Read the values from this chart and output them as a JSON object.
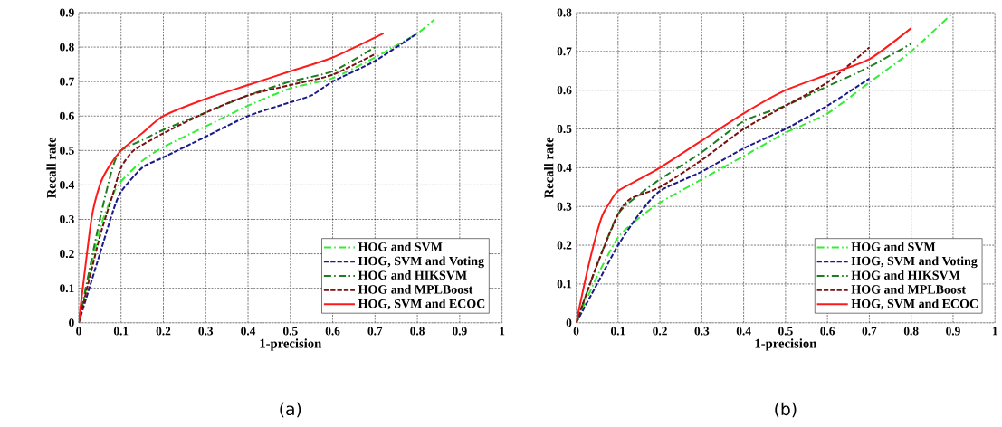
{
  "chart_data": [
    {
      "type": "line",
      "xlabel": "1-precision",
      "ylabel": "Recall rate",
      "annotations": [
        "(a)"
      ],
      "xlim": [
        0,
        1
      ],
      "ylim": [
        0,
        0.9
      ],
      "xticks": [
        0,
        0.1,
        0.2,
        0.3,
        0.4,
        0.5,
        0.6,
        0.7,
        0.8,
        0.9,
        1
      ],
      "yticks": [
        0,
        0.1,
        0.2,
        0.3,
        0.4,
        0.5,
        0.6,
        0.7,
        0.8,
        0.9
      ],
      "grid": true,
      "legend": "bottom right",
      "marker": "none",
      "series": [
        {
          "name": "HOG and SVM",
          "color": "#33ee33",
          "line_style": "dashdot",
          "x": [
            0,
            0.05,
            0.08,
            0.1,
            0.15,
            0.2,
            0.3,
            0.4,
            0.5,
            0.6,
            0.7,
            0.8,
            0.84
          ],
          "values": [
            0,
            0.27,
            0.37,
            0.41,
            0.47,
            0.51,
            0.57,
            0.63,
            0.68,
            0.71,
            0.77,
            0.84,
            0.88
          ]
        },
        {
          "name": "HOG, SVM and Voting",
          "color": "#1a1a8c",
          "line_style": "dashed",
          "x": [
            0,
            0.05,
            0.08,
            0.1,
            0.15,
            0.2,
            0.3,
            0.4,
            0.5,
            0.55,
            0.6,
            0.7,
            0.8
          ],
          "values": [
            0,
            0.2,
            0.32,
            0.38,
            0.45,
            0.48,
            0.54,
            0.6,
            0.64,
            0.66,
            0.7,
            0.76,
            0.84
          ]
        },
        {
          "name": "HOG and HIKSVM",
          "color": "#1e7d1e",
          "line_style": "dashdot",
          "x": [
            0,
            0.05,
            0.08,
            0.1,
            0.15,
            0.2,
            0.3,
            0.4,
            0.5,
            0.6,
            0.7
          ],
          "values": [
            0,
            0.3,
            0.45,
            0.5,
            0.53,
            0.56,
            0.61,
            0.66,
            0.7,
            0.73,
            0.8
          ]
        },
        {
          "name": "HOG and MPLBoost",
          "color": "#7a1010",
          "line_style": "dashed",
          "x": [
            0,
            0.05,
            0.08,
            0.1,
            0.13,
            0.2,
            0.3,
            0.4,
            0.5,
            0.6,
            0.7
          ],
          "values": [
            0,
            0.25,
            0.37,
            0.45,
            0.5,
            0.55,
            0.61,
            0.66,
            0.69,
            0.72,
            0.78
          ]
        },
        {
          "name": "HOG, SVM and ECOC",
          "color": "#ff1a1a",
          "line_style": "solid",
          "x": [
            0,
            0.03,
            0.05,
            0.07,
            0.1,
            0.15,
            0.2,
            0.3,
            0.4,
            0.5,
            0.6,
            0.72
          ],
          "values": [
            0,
            0.3,
            0.4,
            0.45,
            0.5,
            0.55,
            0.6,
            0.65,
            0.69,
            0.73,
            0.77,
            0.84
          ]
        }
      ]
    },
    {
      "type": "line",
      "xlabel": "1-precision",
      "ylabel": "Recall rate",
      "annotations": [
        "(b)"
      ],
      "xlim": [
        0,
        1
      ],
      "ylim": [
        0,
        0.8
      ],
      "xticks": [
        0,
        0.1,
        0.2,
        0.3,
        0.4,
        0.5,
        0.6,
        0.7,
        0.8,
        0.9,
        1
      ],
      "yticks": [
        0,
        0.1,
        0.2,
        0.3,
        0.4,
        0.5,
        0.6,
        0.7,
        0.8
      ],
      "grid": true,
      "legend": "bottom right",
      "marker": "none",
      "series": [
        {
          "name": "HOG and SVM",
          "color": "#33ee33",
          "line_style": "dashdot",
          "x": [
            0,
            0.05,
            0.1,
            0.15,
            0.2,
            0.3,
            0.4,
            0.5,
            0.6,
            0.7,
            0.8,
            0.9
          ],
          "values": [
            0,
            0.12,
            0.22,
            0.27,
            0.31,
            0.37,
            0.43,
            0.49,
            0.54,
            0.62,
            0.7,
            0.8
          ]
        },
        {
          "name": "HOG, SVM and Voting",
          "color": "#1a1a8c",
          "line_style": "dashed",
          "x": [
            0,
            0.05,
            0.1,
            0.15,
            0.2,
            0.3,
            0.4,
            0.5,
            0.6,
            0.7
          ],
          "values": [
            0,
            0.1,
            0.2,
            0.28,
            0.34,
            0.39,
            0.45,
            0.5,
            0.56,
            0.63
          ]
        },
        {
          "name": "HOG and HIKSVM",
          "color": "#1e7d1e",
          "line_style": "dashdot",
          "x": [
            0,
            0.05,
            0.1,
            0.15,
            0.2,
            0.3,
            0.4,
            0.5,
            0.6,
            0.7,
            0.8
          ],
          "values": [
            0,
            0.15,
            0.28,
            0.33,
            0.37,
            0.44,
            0.52,
            0.56,
            0.61,
            0.66,
            0.72
          ]
        },
        {
          "name": "HOG and MPLBoost",
          "color": "#7a1010",
          "line_style": "dashed",
          "x": [
            0,
            0.05,
            0.1,
            0.13,
            0.2,
            0.3,
            0.4,
            0.5,
            0.6,
            0.7
          ],
          "values": [
            0,
            0.15,
            0.28,
            0.32,
            0.35,
            0.42,
            0.5,
            0.56,
            0.62,
            0.71
          ]
        },
        {
          "name": "HOG, SVM and ECOC",
          "color": "#ff1a1a",
          "line_style": "solid",
          "x": [
            0,
            0.03,
            0.06,
            0.08,
            0.1,
            0.15,
            0.2,
            0.3,
            0.4,
            0.5,
            0.6,
            0.7,
            0.8
          ],
          "values": [
            0,
            0.15,
            0.27,
            0.31,
            0.34,
            0.37,
            0.4,
            0.47,
            0.54,
            0.6,
            0.64,
            0.68,
            0.76
          ]
        }
      ]
    }
  ]
}
